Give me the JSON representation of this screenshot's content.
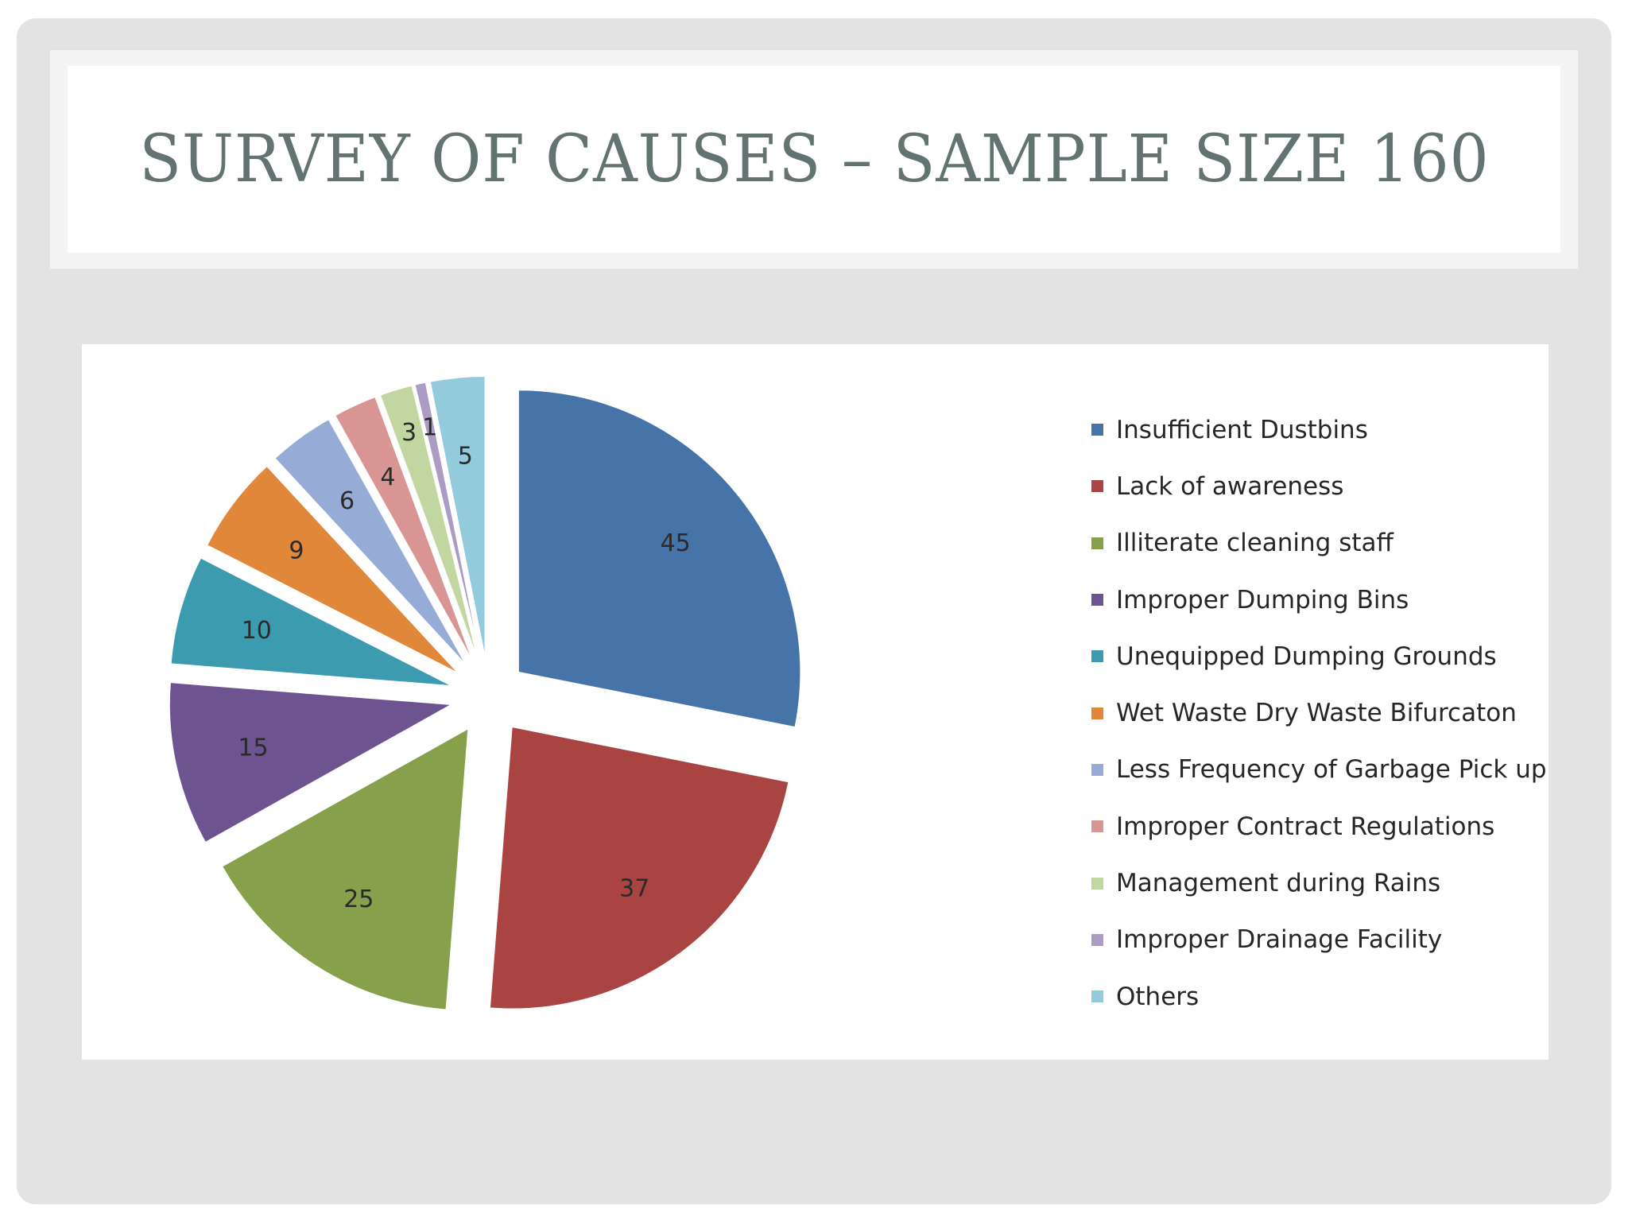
{
  "slide": {
    "title": "SURVEY OF CAUSES – SAMPLE SIZE 160"
  },
  "chart_data": {
    "type": "pie",
    "exploded": true,
    "data_labels": true,
    "legend_position": "right",
    "categories": [
      "Insufficient Dustbins",
      "Lack of awareness",
      "Illiterate cleaning staff",
      "Improper Dumping Bins",
      "Unequipped Dumping Grounds",
      "Wet Waste Dry Waste Bifurcaton",
      "Less Frequency of Garbage Pick up",
      "Improper Contract Regulations",
      "Management during Rains",
      "Improper Drainage Facility",
      "Others"
    ],
    "values": [
      45,
      37,
      25,
      15,
      10,
      9,
      6,
      4,
      3,
      1,
      5
    ],
    "colors": [
      "#4673a8",
      "#a94443",
      "#87a04c",
      "#6d5390",
      "#3d9bb0",
      "#e1873a",
      "#96acd6",
      "#d99594",
      "#c1d6a0",
      "#ac9cc3",
      "#93cbdd"
    ]
  }
}
